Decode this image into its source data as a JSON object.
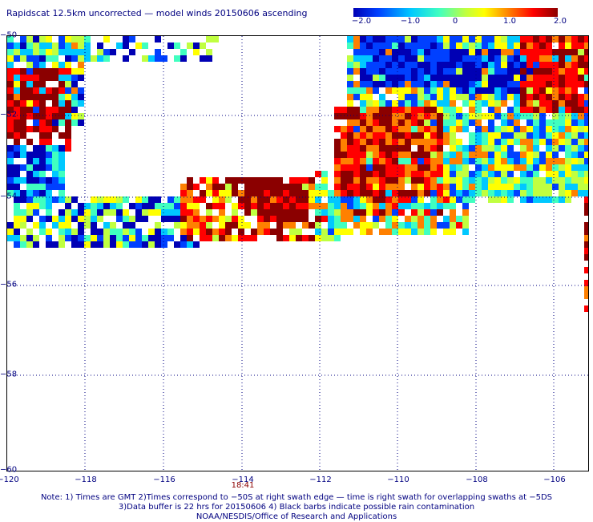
{
  "title": "Rapidscat 12.5km uncorrected — model winds 20150606 ascending",
  "colorbar": {
    "tick_labels": [
      "−2.0",
      "−1.0",
      "0",
      "1.0",
      "2.0"
    ],
    "min": -2.0,
    "max": 2.0,
    "colors": [
      "#0000b4",
      "#0040ff",
      "#00c8ff",
      "#40ffc0",
      "#c0ff40",
      "#ffff00",
      "#ff8000",
      "#ff0000",
      "#8b0000"
    ]
  },
  "axes": {
    "lat_labels": [
      "−50",
      "−52",
      "−54",
      "−56",
      "−58",
      "−60"
    ],
    "lon_labels": [
      "−120",
      "−118",
      "−116",
      "−114",
      "−112",
      "−110",
      "−108",
      "−106"
    ],
    "lat_range": [
      -60,
      -50
    ],
    "lon_range": [
      -120,
      -105.2
    ]
  },
  "time_label": "18:41",
  "notes": [
    "Note: 1) Times are GMT 2)Times correspond to −50S at right swath edge — time is right swath for overlapping swaths at −5DS",
    "3)Data buffer is 22 hrs for 20150606 4) Black barbs indicate possible rain contamination",
    "NOAA/NESDIS/Office of Research and Applications"
  ]
}
